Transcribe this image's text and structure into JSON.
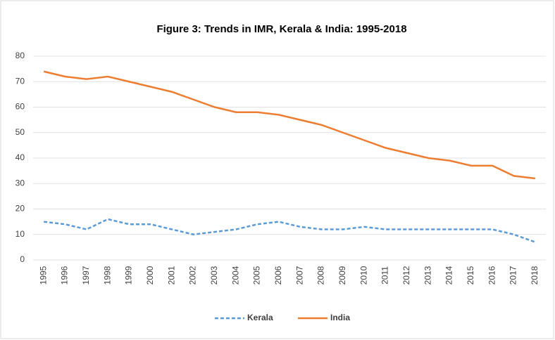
{
  "chart_data": {
    "type": "line",
    "title": "Figure 3: Trends in IMR, Kerala & India: 1995-2018",
    "categories": [
      "1995",
      "1996",
      "1997",
      "1998",
      "1999",
      "2000",
      "2001",
      "2002",
      "2003",
      "2004",
      "2005",
      "2006",
      "2007",
      "2008",
      "2009",
      "2010",
      "2011",
      "2012",
      "2013",
      "2014",
      "2015",
      "2016",
      "2017",
      "2018"
    ],
    "series": [
      {
        "name": "Kerala",
        "color": "#5b9bd5",
        "dashed": true,
        "values": [
          15,
          14,
          12,
          16,
          14,
          14,
          12,
          10,
          11,
          12,
          14,
          15,
          13,
          12,
          12,
          13,
          12,
          12,
          12,
          12,
          12,
          12,
          10,
          7
        ]
      },
      {
        "name": "India",
        "color": "#ed7d31",
        "dashed": false,
        "values": [
          74,
          72,
          71,
          72,
          70,
          68,
          66,
          63,
          60,
          58,
          58,
          57,
          55,
          53,
          50,
          47,
          44,
          42,
          40,
          39,
          37,
          37,
          33,
          32
        ]
      }
    ],
    "ylim": [
      0,
      80
    ],
    "yticks": [
      0,
      10,
      20,
      30,
      40,
      50,
      60,
      70,
      80
    ],
    "grid": true,
    "legend": "bottom"
  }
}
